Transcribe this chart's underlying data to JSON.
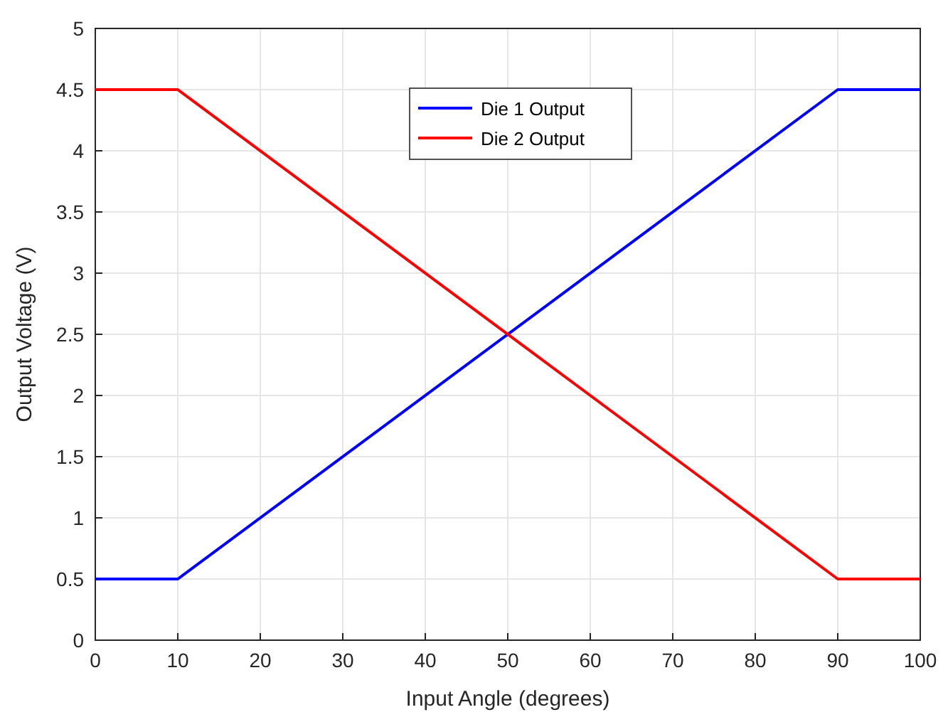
{
  "chart_data": {
    "type": "line",
    "xlabel": "Input Angle (degrees)",
    "ylabel": "Output Voltage (V)",
    "x": [
      0,
      10,
      90,
      100
    ],
    "series": [
      {
        "name": "Die 1 Output",
        "color": "#0000ff",
        "values": [
          0.5,
          0.5,
          4.5,
          4.5
        ]
      },
      {
        "name": "Die 2 Output",
        "color": "#ff0000",
        "values": [
          4.5,
          4.5,
          0.5,
          0.5
        ]
      }
    ],
    "xlim": [
      0,
      100
    ],
    "xticks": [
      0,
      10,
      20,
      30,
      40,
      50,
      60,
      70,
      80,
      90,
      100
    ],
    "ylim": [
      0,
      5
    ],
    "yticks": [
      0,
      0.5,
      1,
      1.5,
      2,
      2.5,
      3,
      3.5,
      4,
      4.5,
      5
    ],
    "grid": true,
    "legend": "top",
    "marker": "none",
    "line_style": "solid"
  }
}
